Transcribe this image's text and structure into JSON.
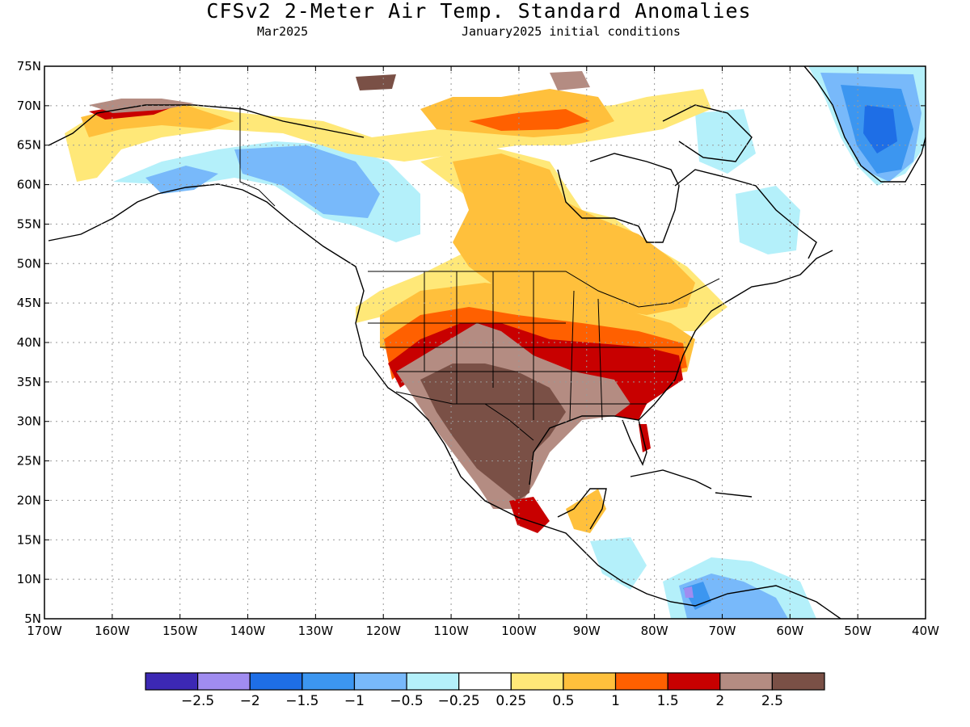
{
  "title": "CFSv2 2-Meter Air Temp. Standard Anomalies",
  "subtitle_left": "Mar2025",
  "subtitle_right": "January2025 initial conditions",
  "map": {
    "lon_range": [
      -170,
      -40
    ],
    "lat_range": [
      5,
      75
    ],
    "lat_ticks": [
      "75N",
      "70N",
      "65N",
      "60N",
      "55N",
      "50N",
      "45N",
      "40N",
      "35N",
      "30N",
      "25N",
      "20N",
      "15N",
      "10N",
      "5N"
    ],
    "lon_ticks": [
      "170W",
      "160W",
      "150W",
      "140W",
      "130W",
      "120W",
      "110W",
      "100W",
      "90W",
      "80W",
      "70W",
      "60W",
      "50W",
      "40W"
    ],
    "gridlines": "dotted"
  },
  "colorbar": {
    "colors": [
      "#3c28b4",
      "#a08cf0",
      "#1e6ee6",
      "#3c96f0",
      "#78b9fa",
      "#b4f0fa",
      "#ffffff",
      "#ffe878",
      "#ffc03c",
      "#ff6000",
      "#c80000",
      "#b48c82",
      "#7a5046"
    ],
    "labels": [
      "-2.5",
      "-2",
      "-1.5",
      "-1",
      "-0.5",
      "-0.25",
      "0.25",
      "0.5",
      "1",
      "1.5",
      "2",
      "2.5"
    ]
  }
}
